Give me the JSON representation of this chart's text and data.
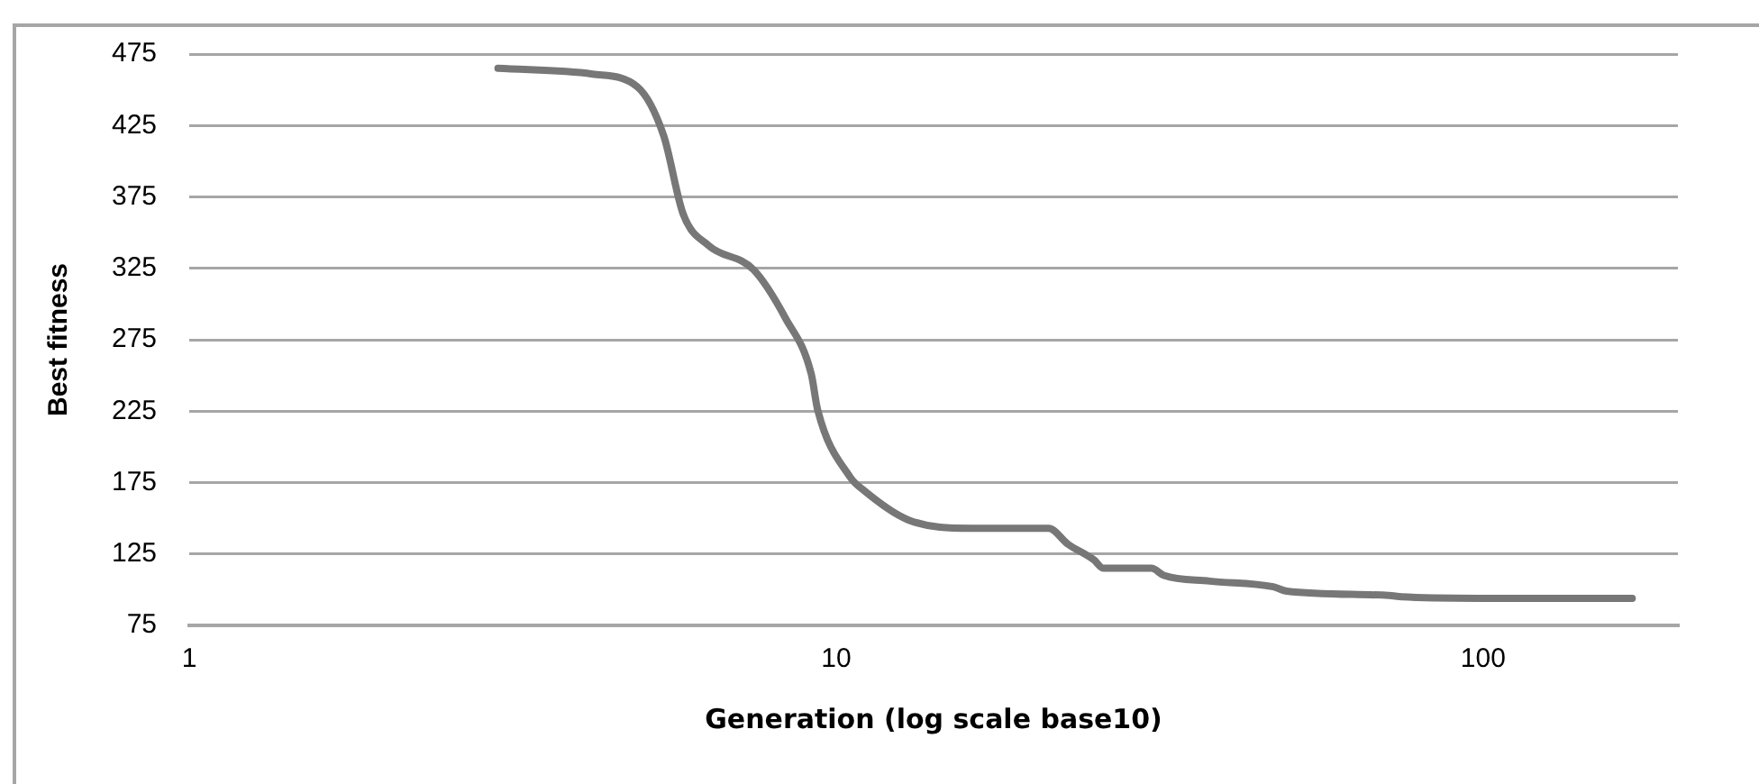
{
  "chart_data": {
    "type": "line",
    "xlabel": "Generation (log scale base10)",
    "ylabel": "Best fitness",
    "x": [
      3,
      4.2,
      4.93,
      5.41,
      5.8,
      6.35,
      7.45,
      8.35,
      9.15,
      9.36,
      10.5,
      11,
      12.9,
      16.2,
      21.3,
      22.8,
      25,
      25.9,
      30.7,
      32.1,
      37.8,
      47.4,
      49.7,
      71.5,
      74.8,
      98,
      170
    ],
    "series": [
      {
        "color": "#777777",
        "values": [
          465,
          461,
          452,
          418,
          363,
          341,
          324,
          290,
          251,
          226,
          179,
          170,
          149,
          143,
          143,
          132,
          121,
          115,
          115,
          110,
          106,
          102,
          99,
          96,
          95,
          94,
          94
        ]
      }
    ],
    "log": "x",
    "xlim": [
      1,
      200
    ],
    "xticks": [
      1,
      10,
      100
    ],
    "ylim": [
      75,
      475
    ],
    "yticks": [
      75,
      125,
      175,
      225,
      275,
      325,
      375,
      425,
      475
    ],
    "grid": "y",
    "legend": false,
    "marker": "none",
    "line_style": "solid"
  }
}
